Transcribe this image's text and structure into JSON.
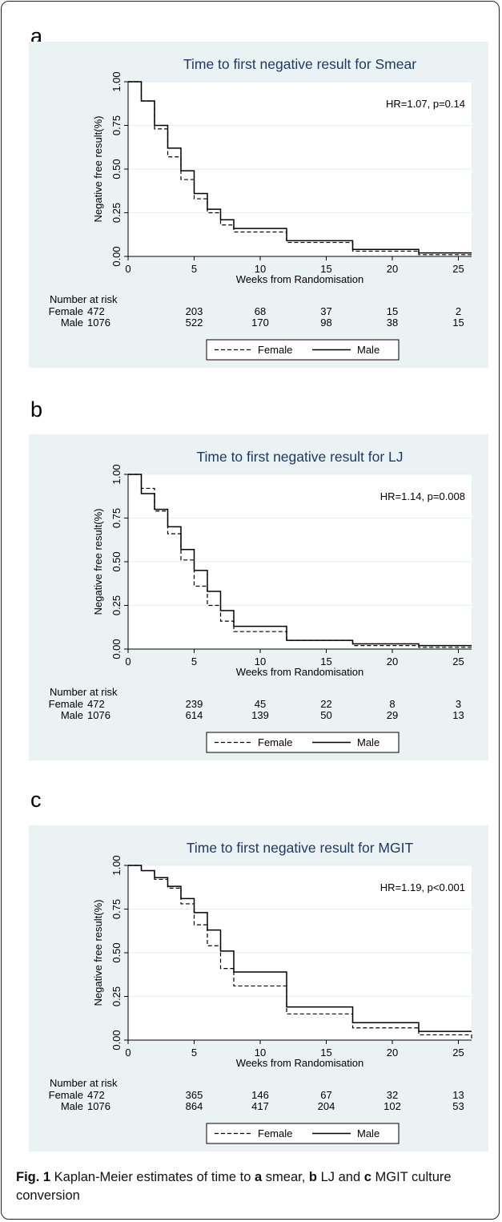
{
  "panels": [
    {
      "letter": "a"
    },
    {
      "letter": "b"
    },
    {
      "letter": "c"
    }
  ],
  "caption": {
    "label": "Fig. 1",
    "segments": [
      {
        "text": " Kaplan-Meier estimates of time to ",
        "bold": false
      },
      {
        "text": "a",
        "bold": true
      },
      {
        "text": " smear, ",
        "bold": false
      },
      {
        "text": "b",
        "bold": true
      },
      {
        "text": " LJ and ",
        "bold": false
      },
      {
        "text": "c",
        "bold": true
      },
      {
        "text": " MGIT culture conversion",
        "bold": false
      }
    ]
  },
  "chart_data": [
    {
      "type": "line",
      "title": "Time to first negative result for Smear",
      "xlabel": "Weeks from Randomisation",
      "ylabel": "Negative free result(%)",
      "xlim": [
        0,
        26
      ],
      "ylim": [
        0,
        1
      ],
      "xticks": [
        0,
        5,
        10,
        15,
        20,
        25
      ],
      "yticks": [
        0.0,
        0.25,
        0.5,
        0.75,
        1.0
      ],
      "ytick_labels": [
        "0.00",
        "0.25",
        "0.50",
        "0.75",
        "1.00"
      ],
      "annotation": "HR=1.07, p=0.14",
      "legend": "bottom",
      "series": [
        {
          "name": "Female",
          "style": "dashed",
          "x": [
            0,
            1,
            2,
            3,
            4,
            5,
            6,
            7,
            8,
            12,
            17,
            22,
            26
          ],
          "y": [
            1.0,
            0.89,
            0.73,
            0.57,
            0.44,
            0.33,
            0.25,
            0.18,
            0.14,
            0.08,
            0.03,
            0.01,
            0.01
          ]
        },
        {
          "name": "Male",
          "style": "solid",
          "x": [
            0,
            1,
            2,
            3,
            4,
            5,
            6,
            7,
            8,
            12,
            17,
            22,
            26
          ],
          "y": [
            1.0,
            0.89,
            0.75,
            0.62,
            0.49,
            0.36,
            0.27,
            0.21,
            0.16,
            0.09,
            0.04,
            0.02,
            0.02
          ]
        }
      ],
      "risk_table": {
        "header": "Number at risk",
        "times": [
          0,
          5,
          10,
          15,
          20,
          25
        ],
        "rows": [
          {
            "label": "Female",
            "values": [
              472,
              203,
              68,
              37,
              15,
              2
            ]
          },
          {
            "label": "Male",
            "values": [
              1076,
              522,
              170,
              98,
              38,
              15
            ]
          }
        ]
      }
    },
    {
      "type": "line",
      "title": "Time to first negative result for LJ",
      "xlabel": "Weeks from Randomisation",
      "ylabel": "Negative free result(%)",
      "xlim": [
        0,
        26
      ],
      "ylim": [
        0,
        1
      ],
      "xticks": [
        0,
        5,
        10,
        15,
        20,
        25
      ],
      "yticks": [
        0.0,
        0.25,
        0.5,
        0.75,
        1.0
      ],
      "ytick_labels": [
        "0.00",
        "0.25",
        "0.50",
        "0.75",
        "1.00"
      ],
      "annotation": "HR=1.14, p=0.008",
      "legend": "bottom",
      "series": [
        {
          "name": "Female",
          "style": "dashed",
          "x": [
            0,
            1,
            2,
            3,
            4,
            5,
            6,
            7,
            8,
            12,
            17,
            22,
            26
          ],
          "y": [
            1.0,
            0.92,
            0.79,
            0.66,
            0.51,
            0.36,
            0.25,
            0.16,
            0.1,
            0.05,
            0.02,
            0.01,
            0.01
          ]
        },
        {
          "name": "Male",
          "style": "solid",
          "x": [
            0,
            1,
            2,
            3,
            4,
            5,
            6,
            7,
            8,
            12,
            17,
            22,
            26
          ],
          "y": [
            1.0,
            0.89,
            0.8,
            0.7,
            0.57,
            0.45,
            0.33,
            0.22,
            0.13,
            0.05,
            0.03,
            0.02,
            0.02
          ]
        }
      ],
      "risk_table": {
        "header": "Number at risk",
        "times": [
          0,
          5,
          10,
          15,
          20,
          25
        ],
        "rows": [
          {
            "label": "Female",
            "values": [
              472,
              239,
              45,
              22,
              8,
              3
            ]
          },
          {
            "label": "Male",
            "values": [
              1076,
              614,
              139,
              50,
              29,
              13
            ]
          }
        ]
      }
    },
    {
      "type": "line",
      "title": "Time to first negative result for MGIT",
      "xlabel": "Weeks from Randomisation",
      "ylabel": "Negative free result(%)",
      "xlim": [
        0,
        26
      ],
      "ylim": [
        0,
        1
      ],
      "xticks": [
        0,
        5,
        10,
        15,
        20,
        25
      ],
      "yticks": [
        0.0,
        0.25,
        0.5,
        0.75,
        1.0
      ],
      "ytick_labels": [
        "0.00",
        "0.25",
        "0.50",
        "0.75",
        "1.00"
      ],
      "annotation": "HR=1.19, p<0.001",
      "legend": "bottom",
      "series": [
        {
          "name": "Female",
          "style": "dashed",
          "x": [
            0,
            1,
            2,
            3,
            4,
            5,
            6,
            7,
            8,
            12,
            17,
            22,
            26
          ],
          "y": [
            1.0,
            0.97,
            0.92,
            0.87,
            0.78,
            0.66,
            0.54,
            0.41,
            0.31,
            0.15,
            0.07,
            0.03,
            0.01
          ]
        },
        {
          "name": "Male",
          "style": "solid",
          "x": [
            0,
            1,
            2,
            3,
            4,
            5,
            6,
            7,
            8,
            12,
            17,
            22,
            26
          ],
          "y": [
            1.0,
            0.97,
            0.93,
            0.88,
            0.81,
            0.73,
            0.63,
            0.51,
            0.39,
            0.19,
            0.1,
            0.05,
            0.05
          ]
        }
      ],
      "risk_table": {
        "header": "Number at risk",
        "times": [
          0,
          5,
          10,
          15,
          20,
          25
        ],
        "rows": [
          {
            "label": "Female",
            "values": [
              472,
              365,
              146,
              67,
              32,
              13
            ]
          },
          {
            "label": "Male",
            "values": [
              1076,
              864,
              417,
              204,
              102,
              53
            ]
          }
        ]
      }
    }
  ]
}
